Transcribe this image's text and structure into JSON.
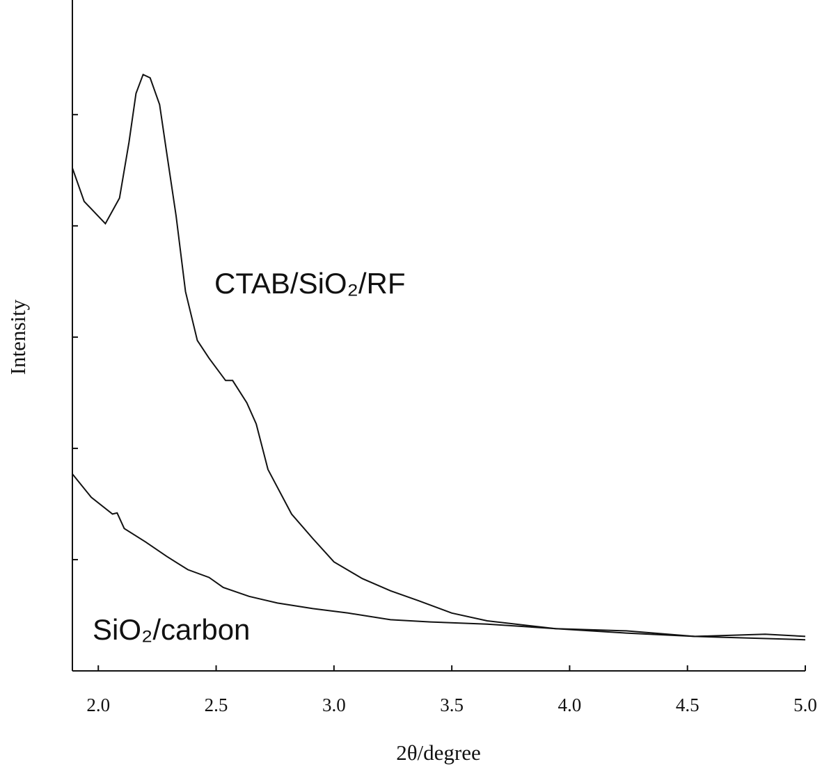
{
  "chart_data": {
    "type": "line",
    "x_label": "2θ/degree",
    "y_label": "Intensity",
    "xlim": [
      1.89,
      5.0
    ],
    "xticks": [
      {
        "value": 2.0,
        "label": "2.0"
      },
      {
        "value": 2.5,
        "label": "2.5"
      },
      {
        "value": 3.0,
        "label": "3.0"
      },
      {
        "value": 3.5,
        "label": "3.5"
      },
      {
        "value": 4.0,
        "label": "4.0"
      },
      {
        "value": 4.5,
        "label": "4.5"
      },
      {
        "value": 5.0,
        "label": "5.0"
      }
    ],
    "ylim": [
      0,
      6.03
    ],
    "yticks": [
      1,
      2,
      3,
      4,
      5
    ],
    "ytick_labels_shown": false,
    "grid": false,
    "series": [
      {
        "name": "CTAB/SiO₂/RF",
        "color": "#111111",
        "x": [
          1.89,
          1.94,
          2.03,
          2.09,
          2.13,
          2.16,
          2.19,
          2.22,
          2.26,
          2.29,
          2.33,
          2.37,
          2.42,
          2.47,
          2.54,
          2.57,
          2.63,
          2.67,
          2.72,
          2.82,
          2.91,
          3.0,
          3.12,
          3.24,
          3.36,
          3.5,
          3.65,
          3.94,
          4.24,
          4.53,
          5.0
        ],
        "values": [
          4.52,
          4.22,
          4.02,
          4.25,
          4.75,
          5.19,
          5.36,
          5.33,
          5.09,
          4.66,
          4.09,
          3.41,
          2.97,
          2.81,
          2.61,
          2.61,
          2.41,
          2.22,
          1.81,
          1.41,
          1.19,
          0.98,
          0.83,
          0.72,
          0.63,
          0.52,
          0.45,
          0.38,
          0.36,
          0.31,
          0.28
        ]
      },
      {
        "name": "SiO₂/carbon",
        "color": "#111111",
        "x": [
          1.89,
          1.97,
          2.06,
          2.08,
          2.11,
          2.2,
          2.29,
          2.38,
          2.47,
          2.53,
          2.64,
          2.76,
          2.91,
          3.06,
          3.24,
          3.41,
          3.65,
          3.94,
          4.24,
          4.53,
          4.83,
          5.0
        ],
        "values": [
          1.77,
          1.56,
          1.41,
          1.42,
          1.28,
          1.16,
          1.03,
          0.91,
          0.84,
          0.75,
          0.67,
          0.61,
          0.56,
          0.52,
          0.46,
          0.44,
          0.42,
          0.38,
          0.34,
          0.31,
          0.33,
          0.31
        ]
      }
    ]
  }
}
